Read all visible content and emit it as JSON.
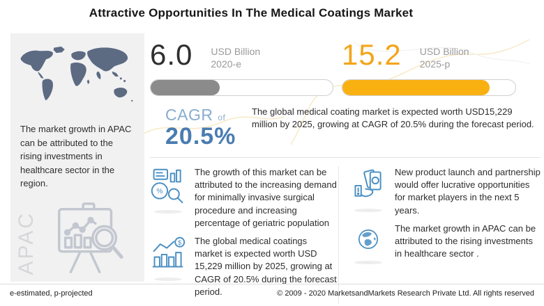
{
  "title": "Attractive Opportunities In The Medical Coatings Market",
  "stats": [
    {
      "value": "6.0",
      "unit": "USD Billion",
      "year": "2020-e",
      "fill_pct": 38,
      "bar_color": "#8b8b8b",
      "value_color": "#2f2f2f"
    },
    {
      "value": "15.2",
      "unit": "USD Billion",
      "year": "2025-p",
      "fill_pct": 85,
      "bar_color": "#f9b112",
      "value_color": "#f2a51b"
    }
  ],
  "cagr": {
    "label": "CAGR",
    "of": "of",
    "value": "20.5%",
    "label_color": "#88accf",
    "value_color": "#4a7cb1",
    "description": "The global medical coating market is expected worth USD15,229 million by 2025, growing at CAGR of 20.5% during the forecast period."
  },
  "left_panel": {
    "text": "The market growth in APAC can be attributed to the rising investments in healthcare sector in the region.",
    "region_label": "APAC"
  },
  "bullets": [
    {
      "icon": "market-analysis-icon",
      "text": "The growth of this market can be attributed to the increasing demand for minimally invasive surgical procedure and increasing percentage of geriatric population"
    },
    {
      "icon": "growth-chart-icon",
      "text": "The global medical coatings market is expected worth USD 15,229 million by 2025, growing at CAGR of 20.5% during the forecast period."
    },
    {
      "icon": "money-hand-icon",
      "text": "New product launch and partnership would offer lucrative opportunities for market players in the next 5 years."
    },
    {
      "icon": "globe-icon",
      "text": "The market growth in APAC can be attributed to the rising investments in healthcare sector ."
    }
  ],
  "footer": {
    "left": "e-estimated, p-projected",
    "right": "© 2009 - 2020 MarketsandMarkets Research Private Ltd. All rights reserved"
  },
  "icons": {
    "percent_glyph": "%",
    "dollar_glyph": "$"
  },
  "colors": {
    "accent_yellow": "#f9b112",
    "accent_gray": "#8b8b8b",
    "blue_icon": "#4a8fc2",
    "map_fill": "#5c6b82",
    "panel_bg": "#f1f1f2"
  },
  "chart_data": {
    "type": "bar",
    "categories": [
      "2020-e",
      "2025-p"
    ],
    "values": [
      6.0,
      15.2
    ],
    "title": "Attractive Opportunities In The Medical Coatings Market",
    "xlabel": "",
    "ylabel": "USD Billion",
    "ylim": [
      0,
      18
    ],
    "annotations": [
      "CAGR of 20.5%",
      "USD 15,229 million by 2025"
    ]
  }
}
